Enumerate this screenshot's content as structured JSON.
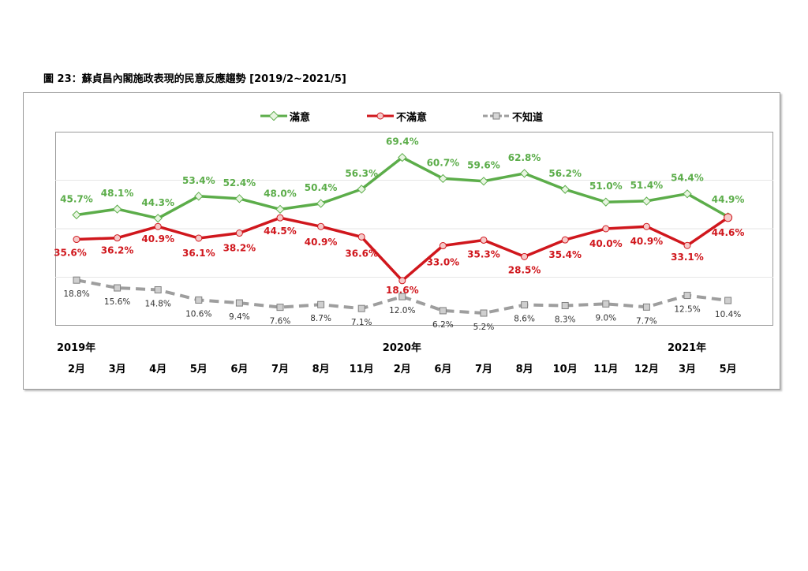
{
  "caption": "圖 23：蘇貞昌內閣施政表現的民意反應趨勢 [2019/2~2021/5]",
  "years": [
    {
      "label": "2019年",
      "index": 0
    },
    {
      "label": "2020年",
      "index": 8
    },
    {
      "label": "2021年",
      "index": 15
    }
  ],
  "chart_data": {
    "type": "line",
    "categories": [
      "2月",
      "3月",
      "4月",
      "5月",
      "6月",
      "7月",
      "8月",
      "11月",
      "2月",
      "6月",
      "7月",
      "8月",
      "10月",
      "11月",
      "12月",
      "3月",
      "5月"
    ],
    "grid": true,
    "legend": "top-center",
    "ylim": [
      0,
      80
    ],
    "series": [
      {
        "name": "滿意",
        "color": "#5cad4a",
        "style": "solid",
        "marker": "diamond",
        "values": [
          45.7,
          48.1,
          44.3,
          53.4,
          52.4,
          48.0,
          50.4,
          56.3,
          69.4,
          60.7,
          59.6,
          62.8,
          56.2,
          51.0,
          51.4,
          54.4,
          44.9
        ]
      },
      {
        "name": "不滿意",
        "color": "#d0171d",
        "style": "solid",
        "marker": "circle",
        "values": [
          35.6,
          36.2,
          40.9,
          36.1,
          38.2,
          44.5,
          40.9,
          36.6,
          18.6,
          33.0,
          35.3,
          28.5,
          35.4,
          40.0,
          40.9,
          33.1,
          44.6
        ]
      },
      {
        "name": "不知道",
        "color": "#9e9e9e",
        "style": "dashed",
        "marker": "square",
        "values": [
          18.8,
          15.6,
          14.8,
          10.6,
          9.4,
          7.6,
          8.7,
          7.1,
          12.0,
          6.2,
          5.2,
          8.6,
          8.3,
          9.0,
          7.7,
          12.5,
          10.4
        ]
      }
    ],
    "labels": {
      "滿意": [
        "45.7%",
        "48.1%",
        "44.3%",
        "53.4%",
        "52.4%",
        "48.0%",
        "50.4%",
        "56.3%",
        "69.4%",
        "60.7%",
        "59.6%",
        "62.8%",
        "56.2%",
        "51.0%",
        "51.4%",
        "54.4%",
        "44.9%"
      ],
      "不滿意": [
        "35.6%",
        "36.2%",
        "40.9%",
        "36.1%",
        "38.2%",
        "44.5%",
        "40.9%",
        "36.6%",
        "18.6%",
        "33.0%",
        "35.3%",
        "28.5%",
        "35.4%",
        "40.0%",
        "40.9%",
        "33.1%",
        "44.6%"
      ],
      "不知道": [
        "18.8%",
        "15.6%",
        "14.8%",
        "10.6%",
        "9.4%",
        "7.6%",
        "8.7%",
        "7.1%",
        "12.0%",
        "6.2%",
        "5.2%",
        "8.6%",
        "8.3%",
        "9.0%",
        "7.7%",
        "12.5%",
        "10.4%"
      ]
    }
  }
}
